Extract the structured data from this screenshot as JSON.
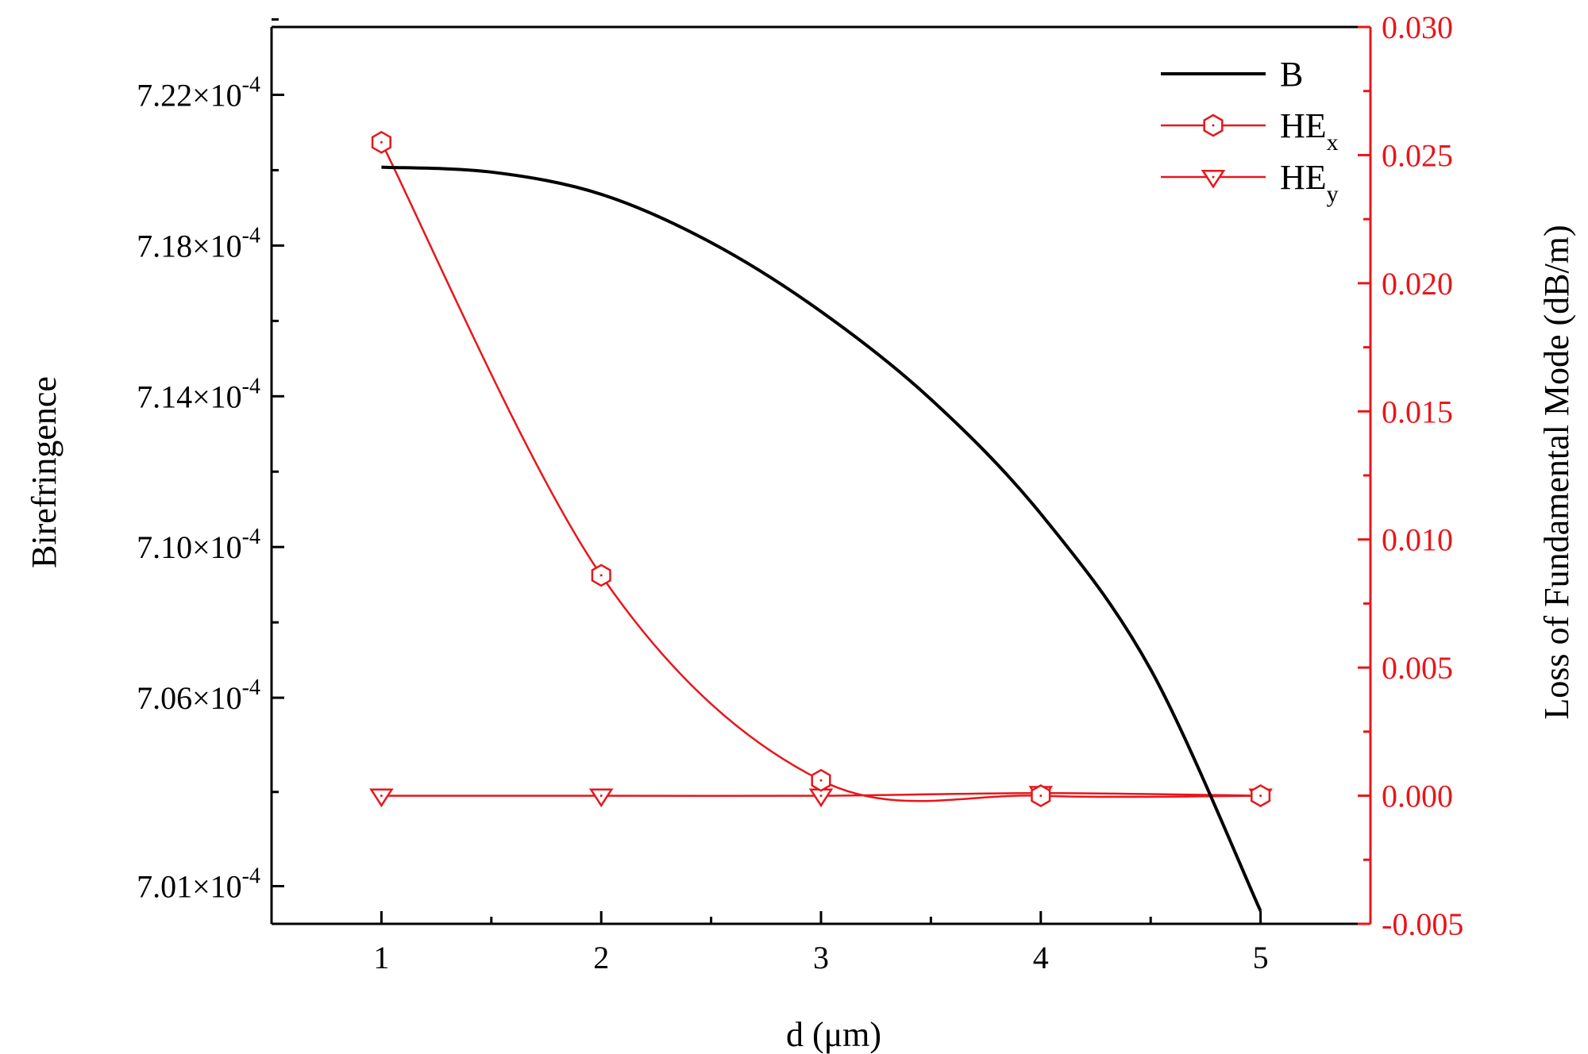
{
  "chart_data": {
    "type": "line",
    "x_axis": {
      "label": "d (μm)",
      "range": [
        0.5,
        5.5
      ],
      "ticks": [
        "1",
        "2",
        "3",
        "4",
        "5"
      ]
    },
    "y_left_axis": {
      "label": "Birefringence",
      "range": [
        7.0,
        7.238
      ],
      "unit_exponent": "-4",
      "ticks": [
        {
          "value": 7.01,
          "mantissa": "7.01×10",
          "exp": "-4"
        },
        {
          "value": 7.06,
          "mantissa": "7.06×10",
          "exp": "-4"
        },
        {
          "value": 7.1,
          "mantissa": "7.10×10",
          "exp": "-4"
        },
        {
          "value": 7.14,
          "mantissa": "7.14×10",
          "exp": "-4"
        },
        {
          "value": 7.18,
          "mantissa": "7.18×10",
          "exp": "-4"
        },
        {
          "value": 7.22,
          "mantissa": "7.22×10",
          "exp": "-4"
        }
      ]
    },
    "y_right_axis": {
      "label": "Loss of Fundamental Mode (dB/m)",
      "range": [
        -0.005,
        0.03
      ],
      "ticks": [
        "-0.005",
        "0.000",
        "0.005",
        "0.010",
        "0.015",
        "0.020",
        "0.025",
        "0.030"
      ]
    },
    "series": [
      {
        "name": "B",
        "axis": "left",
        "color": "#000000",
        "marker": "none",
        "x": [
          1,
          1.5,
          2,
          2.5,
          3,
          3.5,
          4,
          4.5,
          5
        ],
        "y": [
          7.2008,
          7.1995,
          7.1936,
          7.1808,
          7.1625,
          7.1392,
          7.1088,
          7.0675,
          7.0034
        ]
      },
      {
        "name": "HE",
        "subscript": "x",
        "axis": "right",
        "color": "#e8161b",
        "marker": "hexagon",
        "x": [
          1,
          2,
          3,
          4,
          5
        ],
        "y": [
          0.0255,
          0.0086,
          0.0006,
          0.0,
          0.0
        ]
      },
      {
        "name": "HE",
        "subscript": "y",
        "axis": "right",
        "color": "#e8161b",
        "marker": "triangle-down",
        "x": [
          1,
          2,
          3,
          4,
          5
        ],
        "y": [
          0.0,
          0.0,
          0.0,
          0.0001,
          0.0
        ]
      }
    ],
    "legend_position": "top-right"
  }
}
